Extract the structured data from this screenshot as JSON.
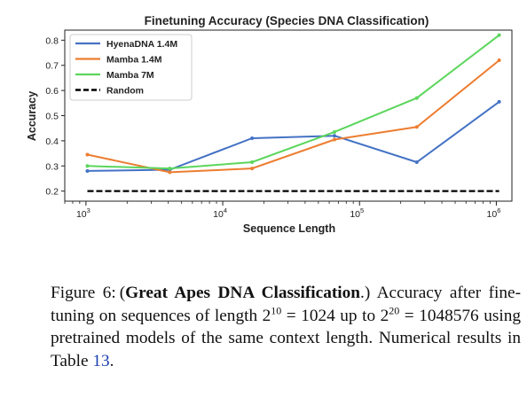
{
  "chart_data": {
    "type": "line",
    "title": "Finetuning Accuracy (Species DNA Classification)",
    "xlabel": "Sequence Length",
    "ylabel": "Accuracy",
    "xscale": "log",
    "xlim": [
      700,
      1300000
    ],
    "ylim": [
      0.16,
      0.84
    ],
    "x_ticks": [
      {
        "label_base": "10",
        "label_exp": "3",
        "value": 1000
      },
      {
        "label_base": "10",
        "label_exp": "4",
        "value": 10000
      },
      {
        "label_base": "10",
        "label_exp": "5",
        "value": 100000
      },
      {
        "label_base": "10",
        "label_exp": "6",
        "value": 1000000
      }
    ],
    "y_ticks": [
      "0.2",
      "0.3",
      "0.4",
      "0.5",
      "0.6",
      "0.7",
      "0.8"
    ],
    "x": [
      1024,
      4096,
      16384,
      65536,
      262144,
      1048576
    ],
    "series": [
      {
        "name": "HyenaDNA 1.4M",
        "color": "#4472c4",
        "dashed": false,
        "values": [
          0.28,
          0.285,
          0.41,
          0.42,
          0.315,
          0.555
        ]
      },
      {
        "name": "Mamba 1.4M",
        "color": "#ed7d31",
        "dashed": false,
        "values": [
          0.345,
          0.275,
          0.29,
          0.405,
          0.455,
          0.72
        ]
      },
      {
        "name": "Mamba 7M",
        "color": "#5cd65c",
        "dashed": false,
        "values": [
          0.3,
          0.29,
          0.315,
          0.435,
          0.57,
          0.82
        ]
      },
      {
        "name": "Random",
        "color": "#000000",
        "dashed": true,
        "values": [
          0.2,
          0.2,
          0.2,
          0.2,
          0.2,
          0.2
        ]
      }
    ],
    "legend_position": "top-left",
    "grid": false
  },
  "caption": {
    "label": "Figure 6:",
    "bold": "Great Apes DNA Classification",
    "text_a": "Accuracy after fine-tuning on sequences of length 2",
    "exp_a": "10",
    "text_b": " = 1024 up to 2",
    "exp_b": "20",
    "text_c": " = 1048576 using pretrained models of the same context length. Numerical results in Table ",
    "table_ref": "13",
    "text_d": "."
  }
}
